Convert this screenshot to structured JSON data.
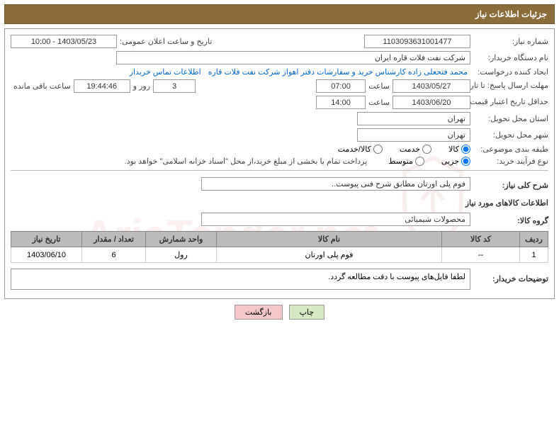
{
  "header": {
    "title": "جزئیات اطلاعات نیاز"
  },
  "form": {
    "need_number_label": "شماره نیاز:",
    "need_number": "1103093631001477",
    "announce_label": "تاریخ و ساعت اعلان عمومی:",
    "announce_value": "1403/05/23 - 10:00",
    "buyer_org_label": "نام دستگاه خریدار:",
    "buyer_org": "شرکت نفت فلات قاره ایران",
    "requester_label": "ایجاد کننده درخواست:",
    "requester": "محمد فتحعلی زاده کارشناس خرید و سفارشات دفتر اهواز شرکت نفت فلات قاره",
    "contact_link": "اطلاعات تماس خریدار",
    "response_deadline_label": "مهلت ارسال پاسخ: تا تاریخ:",
    "response_date": "1403/05/27",
    "time_label": "ساعت",
    "response_time": "07:00",
    "days_remaining": "3",
    "days_label": "روز و",
    "countdown": "19:44:46",
    "remaining_label": "ساعت باقی مانده",
    "validity_label": "حداقل تاریخ اعتبار قیمت: تا تاریخ:",
    "validity_date": "1403/06/20",
    "validity_time": "14:00",
    "province_label": "استان محل تحویل:",
    "province": "تهران",
    "city_label": "شهر محل تحویل:",
    "city": "تهران",
    "category_label": "طبقه بندی موضوعی:",
    "radio_goods": "کالا",
    "radio_service": "خدمت",
    "radio_both": "کالا/خدمت",
    "process_label": "نوع فرآیند خرید:",
    "radio_partial": "جزیی",
    "radio_medium": "متوسط",
    "payment_note": "پرداخت تمام یا بخشی از مبلغ خرید،از محل \"اسناد خزانه اسلامی\" خواهد بود.",
    "summary_label": "شرح کلی نیاز:",
    "summary": "فوم پلی اورتان مطابق شرح فنی پیوست..",
    "goods_title": "اطلاعات کالاهای مورد نیاز",
    "group_label": "گروه کالا:",
    "group": "محصولات شیمیائی",
    "buyer_notes_label": "توضیحات خریدار:",
    "buyer_notes": "لطفا فایل‌های پیوست با دقت مطالعه گردد."
  },
  "table": {
    "headers": {
      "row": "ردیف",
      "code": "کد کالا",
      "name": "نام کالا",
      "unit": "واحد شمارش",
      "qty": "تعداد / مقدار",
      "date": "تاریخ نیاز"
    },
    "rows": [
      {
        "row": "1",
        "code": "--",
        "name": "فوم پلی اورتان",
        "unit": "رول",
        "qty": "6",
        "date": "1403/06/10"
      }
    ]
  },
  "buttons": {
    "print": "چاپ",
    "back": "بازگشت"
  },
  "watermark": "AriaTender.net"
}
